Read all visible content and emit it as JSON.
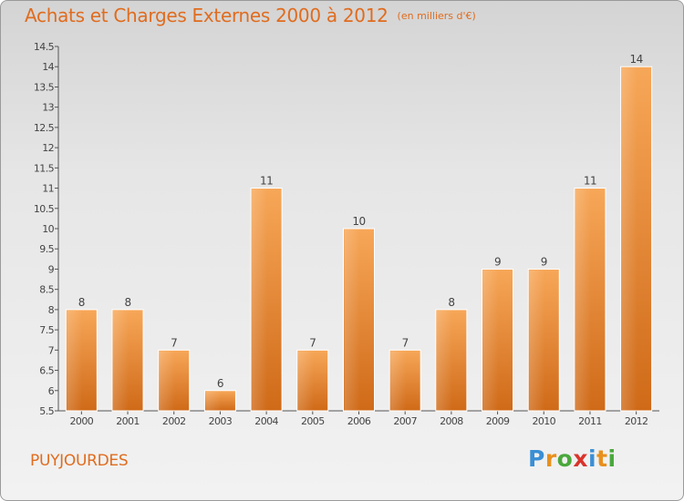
{
  "title": "Achats et Charges Externes 2000 à 2012",
  "subtitle": "(en milliers d'€)",
  "commune": "PUYJOURDES",
  "brand": {
    "letters": [
      "P",
      "r",
      "o",
      "x",
      "i",
      "t",
      "i"
    ],
    "colors": [
      "#3b8fd4",
      "#e8901c",
      "#4aa83c",
      "#d9342b",
      "#3b8fd4",
      "#e8901c",
      "#4aa83c"
    ]
  },
  "colors": {
    "bar_light": "#f7a758",
    "bar_dark": "#cf6a18",
    "text": "#444444",
    "accent": "#e06c1e"
  },
  "chart_data": {
    "type": "bar",
    "title": "Achats et Charges Externes 2000 à 2012",
    "subtitle": "(en milliers d'€)",
    "categories": [
      "2000",
      "2001",
      "2002",
      "2003",
      "2004",
      "2005",
      "2006",
      "2007",
      "2008",
      "2009",
      "2010",
      "2011",
      "2012"
    ],
    "values": [
      8,
      8,
      7,
      6,
      11,
      7,
      10,
      7,
      8,
      9,
      9,
      11,
      14
    ],
    "data_labels": [
      "8",
      "8",
      "7",
      "6",
      "11",
      "7",
      "10",
      "7",
      "8",
      "9",
      "9",
      "11",
      "14"
    ],
    "ylim": [
      5.5,
      14.5
    ],
    "yticks": [
      "5.5",
      "6",
      "6.5",
      "7",
      "7.5",
      "8",
      "8.5",
      "9",
      "9.5",
      "10",
      "10.5",
      "11",
      "11.5",
      "12",
      "12.5",
      "13",
      "13.5",
      "14",
      "14.5"
    ],
    "grid": false,
    "legend": "none"
  }
}
